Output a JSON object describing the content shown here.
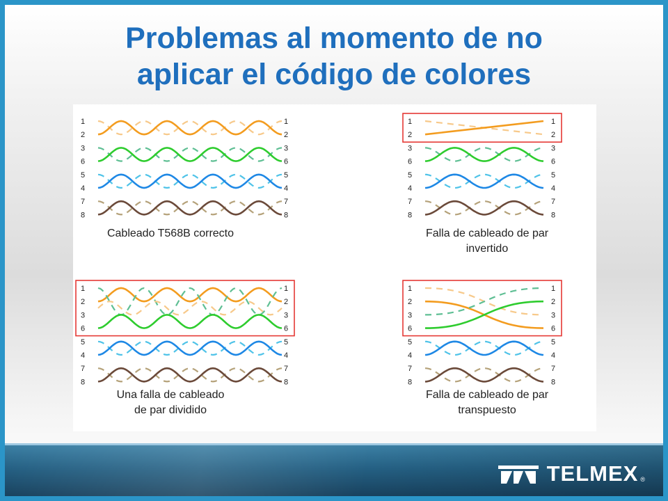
{
  "slide": {
    "title_line1": "Problemas al momento de no",
    "title_line2": "aplicar el código de colores"
  },
  "colors": {
    "orange": "#f39c1f",
    "orange_light": "#f7c98a",
    "green": "#2ecc2e",
    "green_light": "#5fbf94",
    "blue": "#1e88e5",
    "blue_light": "#4fc3e8",
    "brown": "#6b4a3a",
    "brown_light": "#b5a27a",
    "highlight_box": "#e53935",
    "title": "#1f6fbd"
  },
  "diagrams": [
    {
      "id": "correct",
      "caption_lines": [
        "Cableado T568B correcto"
      ],
      "left_pins": [
        "1",
        "2",
        "3",
        "6",
        "5",
        "4",
        "7",
        "8"
      ],
      "right_pins": [
        "1",
        "2",
        "3",
        "6",
        "5",
        "4",
        "7",
        "8"
      ],
      "highlight_rows": []
    },
    {
      "id": "reversed",
      "caption_lines": [
        "Falla de cableado de par",
        "invertido"
      ],
      "left_pins": [
        "1",
        "2",
        "3",
        "6",
        "5",
        "4",
        "7",
        "8"
      ],
      "right_pins": [
        "1",
        "2",
        "3",
        "6",
        "5",
        "4",
        "7",
        "8"
      ],
      "highlight_rows": [
        0,
        1
      ]
    },
    {
      "id": "split",
      "caption_lines": [
        "Una falla de cableado",
        "de par dividido"
      ],
      "left_pins": [
        "1",
        "2",
        "3",
        "6",
        "5",
        "4",
        "7",
        "8"
      ],
      "right_pins": [
        "1",
        "2",
        "3",
        "6",
        "5",
        "4",
        "7",
        "8"
      ],
      "highlight_rows": [
        0,
        3
      ]
    },
    {
      "id": "transposed",
      "caption_lines": [
        "Falla de cableado de par",
        "transpuesto"
      ],
      "left_pins": [
        "1",
        "2",
        "3",
        "6",
        "5",
        "4",
        "7",
        "8"
      ],
      "right_pins": [
        "1",
        "2",
        "3",
        "6",
        "5",
        "4",
        "7",
        "8"
      ],
      "highlight_rows": [
        0,
        3
      ]
    }
  ],
  "footer": {
    "brand_name": "TELMEX",
    "brand_reg": "®",
    "logo_icon": "telmex-logo-icon"
  }
}
